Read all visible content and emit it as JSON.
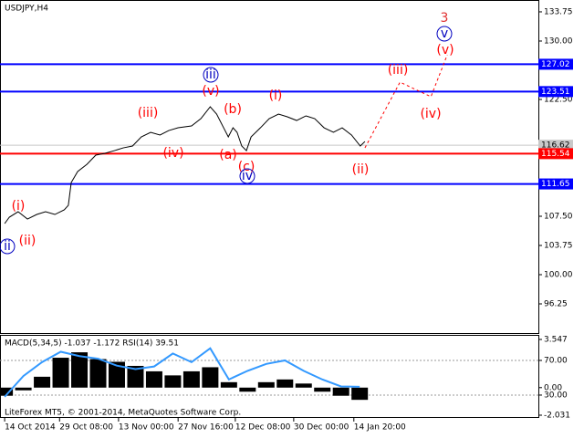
{
  "chart_data": [
    {
      "type": "line",
      "title": "USDJPY,H4",
      "footer": "LiteForex MT5, © 2001-2014, MetaQuotes Software Corp.",
      "xlim": [
        -0.08,
        9.14
      ],
      "ylim": [
        92.5,
        135.27
      ],
      "xticks": [
        {
          "value": 0,
          "label": "14 Oct 2014"
        },
        {
          "value": 0.94,
          "label": "29 Oct 08:00"
        },
        {
          "value": 1.95,
          "label": "13 Nov 00:00"
        },
        {
          "value": 2.97,
          "label": "27 Nov 16:00"
        },
        {
          "value": 3.95,
          "label": "12 Dec 08:00"
        },
        {
          "value": 4.95,
          "label": "30 Dec 00:00"
        },
        {
          "value": 5.98,
          "label": "14 Jan 20:00"
        }
      ],
      "yticks": [
        {
          "value": 133.75,
          "label": "133.75"
        },
        {
          "value": 130,
          "label": "130.00"
        },
        {
          "value": 122.5,
          "label": "122.50"
        },
        {
          "value": 107.5,
          "label": "107.50"
        },
        {
          "value": 103.75,
          "label": "103.75"
        },
        {
          "value": 100,
          "label": "100.00"
        },
        {
          "value": 96.25,
          "label": "96.25"
        }
      ],
      "levels": [
        {
          "value": 127.02,
          "color": "#0000ff"
        },
        {
          "value": 123.51,
          "color": "#0000ff"
        },
        {
          "value": 116.62,
          "color": "#c8c8c8"
        },
        {
          "value": 115.54,
          "color": "#ff0000"
        },
        {
          "value": 111.65,
          "color": "#0000ff"
        }
      ],
      "series": [
        {
          "color": "#000000",
          "style": "solid",
          "x": [
            0,
            0.08,
            0.23,
            0.39,
            0.55,
            0.7,
            0.86,
            1.02,
            1.09,
            1.14,
            1.25,
            1.41,
            1.56,
            1.72,
            1.88,
            2.03,
            2.19,
            2.34,
            2.5,
            2.66,
            2.81,
            2.97,
            3.2,
            3.36,
            3.52,
            3.63,
            3.75,
            3.83,
            3.91,
            3.98,
            4.06,
            4.14,
            4.22,
            4.38,
            4.53,
            4.69,
            4.84,
            5,
            5.16,
            5.31,
            5.47,
            5.63,
            5.78,
            5.94,
            6.09,
            6.17
          ],
          "values": [
            106.56,
            107.38,
            108.08,
            107.14,
            107.73,
            108.08,
            107.73,
            108.32,
            108.9,
            111.83,
            113.24,
            114.18,
            115.35,
            115.58,
            115.93,
            116.28,
            116.52,
            117.69,
            118.28,
            117.93,
            118.51,
            118.86,
            119.1,
            120.03,
            121.56,
            120.62,
            118.86,
            117.69,
            118.86,
            118.28,
            116.52,
            115.93,
            117.69,
            118.86,
            120.03,
            120.62,
            120.27,
            119.8,
            120.39,
            120.03,
            118.86,
            118.28,
            118.86,
            117.93,
            116.52,
            117.1
          ]
        },
        {
          "color": "#ff0000",
          "style": "dashed",
          "x": [
            6.17,
            6.77,
            7.3,
            7.58
          ],
          "values": [
            116.28,
            124.72,
            122.85,
            128.24
          ]
        }
      ],
      "annotations": [
        {
          "text": "3",
          "color": "#e03030"
        },
        {
          "text": "v",
          "color": "#0000c0"
        },
        {
          "text": "(v)",
          "color": "#ff0000"
        },
        {
          "text": "(iii)",
          "color": "#ff0000"
        },
        {
          "text": "(iv)",
          "color": "#ff0000"
        },
        {
          "text": "iii",
          "color": "#0000c0"
        },
        {
          "text": "(v)",
          "color": "#ff0000"
        },
        {
          "text": "(b)",
          "color": "#ff0000"
        },
        {
          "text": "(iii)",
          "color": "#ff0000"
        },
        {
          "text": "(i)",
          "color": "#ff0000"
        },
        {
          "text": "(iv)",
          "color": "#ff0000"
        },
        {
          "text": "(a)",
          "color": "#ff0000"
        },
        {
          "text": "(c)",
          "color": "#ff0000"
        },
        {
          "text": "iv",
          "color": "#0000c0"
        },
        {
          "text": "(ii)",
          "color": "#ff0000"
        },
        {
          "text": "(i)",
          "color": "#ff0000"
        },
        {
          "text": "ii",
          "color": "#0000c0"
        },
        {
          "text": "(ii)",
          "color": "#ff0000"
        }
      ]
    },
    {
      "type": "bar",
      "title": "MACD(5,34,5) -1.037 -1.172 RSI(14) 39.51",
      "xlim": [
        -0.08,
        9.14
      ],
      "ylim": [
        -2.031,
        3.547
      ],
      "y2lim": [
        6.8,
        94.2
      ],
      "yticks": [
        {
          "value": 3.547,
          "label": "3.547"
        },
        {
          "value": 0,
          "label": "0.00"
        },
        {
          "value": -2.031,
          "label": "-2.031"
        }
      ],
      "y2ticks": [
        {
          "value": 70,
          "label": "70.00"
        },
        {
          "value": 30,
          "label": "30.00"
        }
      ],
      "series": [
        {
          "color": "#000000",
          "x": [
            0,
            0.32,
            0.64,
            0.96,
            1.28,
            1.6,
            1.92,
            2.24,
            2.56,
            2.88,
            3.2,
            3.52,
            3.84,
            4.16,
            4.48,
            4.8,
            5.12,
            5.44,
            5.76,
            6.08
          ],
          "values": [
            -0.6,
            -0.2,
            0.8,
            2.2,
            2.6,
            2.1,
            1.9,
            1.6,
            1.2,
            0.9,
            1.2,
            1.5,
            0.4,
            -0.3,
            0.4,
            0.6,
            0.3,
            -0.3,
            -0.6,
            -0.9
          ]
        },
        {
          "color": "#3399ff",
          "axis": "y2",
          "x": [
            0,
            0.32,
            0.64,
            0.96,
            1.28,
            1.6,
            1.92,
            2.24,
            2.56,
            2.88,
            3.2,
            3.52,
            3.84,
            4.16,
            4.48,
            4.8,
            5.12,
            5.44,
            5.76,
            6.08
          ],
          "values": [
            28,
            52,
            68,
            80,
            75,
            72,
            64,
            60,
            63,
            78,
            68,
            84,
            48,
            58,
            66,
            70,
            58,
            48,
            40,
            39.51
          ]
        }
      ]
    }
  ]
}
